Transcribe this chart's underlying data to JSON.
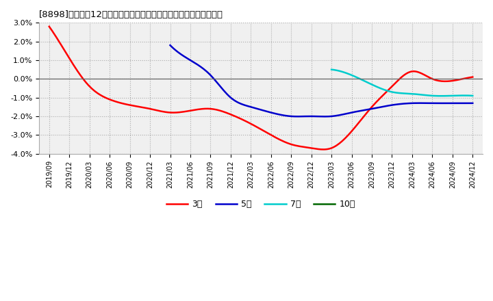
{
  "title": "[8898]　売上高12か月移動合計の対前年同期増減率の平均値の推移",
  "background_color": "#ffffff",
  "plot_bg_color": "#f0f0f0",
  "grid_color": "#bbbbbb",
  "ylim": [
    -0.04,
    0.03
  ],
  "yticks": [
    -0.04,
    -0.03,
    -0.02,
    -0.01,
    0.0,
    0.01,
    0.02,
    0.03
  ],
  "series": {
    "3year": {
      "color": "#ff0000",
      "label": "3年",
      "data": [
        [
          "2019-09",
          0.028
        ],
        [
          "2019-12",
          0.011
        ],
        [
          "2020-03",
          -0.004
        ],
        [
          "2020-06",
          -0.011
        ],
        [
          "2020-09",
          -0.014
        ],
        [
          "2020-12",
          -0.016
        ],
        [
          "2021-03",
          -0.018
        ],
        [
          "2021-06",
          -0.017
        ],
        [
          "2021-09",
          -0.016
        ],
        [
          "2021-12",
          -0.019
        ],
        [
          "2022-03",
          -0.024
        ],
        [
          "2022-06",
          -0.03
        ],
        [
          "2022-09",
          -0.035
        ],
        [
          "2022-12",
          -0.037
        ],
        [
          "2023-03",
          -0.037
        ],
        [
          "2023-06",
          -0.028
        ],
        [
          "2023-09",
          -0.015
        ],
        [
          "2023-12",
          -0.004
        ],
        [
          "2024-03",
          0.004
        ],
        [
          "2024-06",
          0.0
        ],
        [
          "2024-09",
          -0.001
        ],
        [
          "2024-12",
          0.001
        ]
      ]
    },
    "5year": {
      "color": "#0000cc",
      "label": "5年",
      "data": [
        [
          "2021-03",
          0.018
        ],
        [
          "2021-06",
          0.01
        ],
        [
          "2021-09",
          0.002
        ],
        [
          "2021-12",
          -0.01
        ],
        [
          "2022-03",
          -0.015
        ],
        [
          "2022-06",
          -0.018
        ],
        [
          "2022-09",
          -0.02
        ],
        [
          "2022-12",
          -0.02
        ],
        [
          "2023-03",
          -0.02
        ],
        [
          "2023-06",
          -0.018
        ],
        [
          "2023-09",
          -0.016
        ],
        [
          "2023-12",
          -0.014
        ],
        [
          "2024-03",
          -0.013
        ],
        [
          "2024-06",
          -0.013
        ],
        [
          "2024-09",
          -0.013
        ],
        [
          "2024-12",
          -0.013
        ]
      ]
    },
    "7year": {
      "color": "#00cccc",
      "label": "7年",
      "data": [
        [
          "2023-03",
          0.005
        ],
        [
          "2023-06",
          0.002
        ],
        [
          "2023-09",
          -0.003
        ],
        [
          "2023-12",
          -0.007
        ],
        [
          "2024-03",
          -0.008
        ],
        [
          "2024-06",
          -0.009
        ],
        [
          "2024-09",
          -0.009
        ],
        [
          "2024-12",
          -0.009
        ]
      ]
    },
    "10year": {
      "color": "#006600",
      "label": "10年",
      "data": []
    }
  },
  "x_tick_labels": [
    "2019/09",
    "2019/12",
    "2020/03",
    "2020/06",
    "2020/09",
    "2020/12",
    "2021/03",
    "2021/06",
    "2021/09",
    "2021/12",
    "2022/03",
    "2022/06",
    "2022/09",
    "2022/12",
    "2023/03",
    "2023/06",
    "2023/09",
    "2023/12",
    "2024/03",
    "2024/06",
    "2024/09",
    "2024/12"
  ]
}
